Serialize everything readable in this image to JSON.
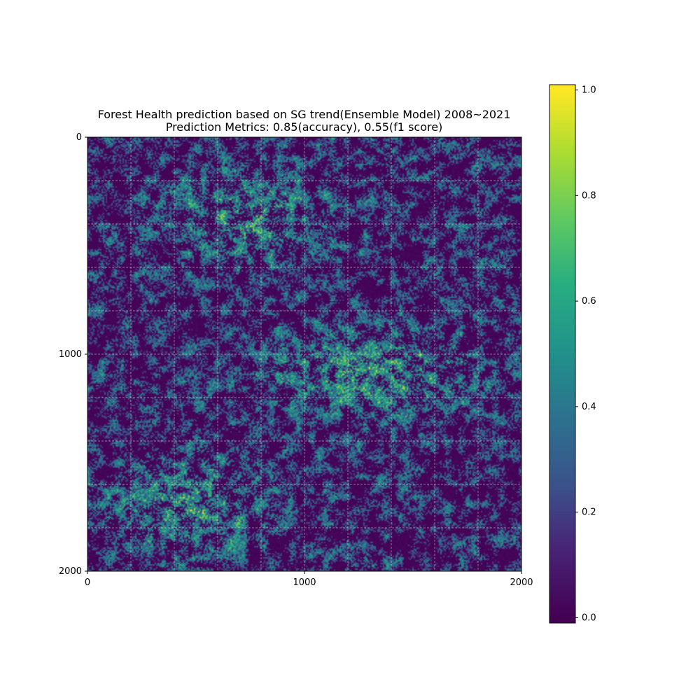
{
  "chart_data": {
    "type": "heatmap",
    "title": "Forest Health prediction based on SG trend(Ensemble Model) 2008~2021",
    "subtitle": "Prediction Metrics: 0.85(accuracy), 0.55(f1 score)",
    "xlabel": "",
    "ylabel": "",
    "xlim": [
      0,
      2000
    ],
    "ylim": [
      2000,
      0
    ],
    "x_ticks": [
      "0",
      "1000",
      "2000"
    ],
    "y_ticks": [
      "0",
      "1000",
      "2000"
    ],
    "grid": true,
    "colormap": "viridis",
    "value_range": [
      0.0,
      1.0
    ],
    "colorbar": {
      "ticks": [
        "0.0",
        "0.2",
        "0.4",
        "0.6",
        "0.8",
        "1.0"
      ],
      "tick_values": [
        0.0,
        0.2,
        0.4,
        0.6,
        0.8,
        1.0
      ],
      "range": [
        -0.01,
        1.01
      ]
    },
    "hotspot_bands": [
      {
        "description": "upper diagonal band",
        "x_range": [
          300,
          1200
        ],
        "y_range": [
          100,
          650
        ],
        "intensity": 0.75
      },
      {
        "description": "middle diagonal band",
        "x_range": [
          700,
          1900
        ],
        "y_range": [
          850,
          1300
        ],
        "intensity": 0.8
      },
      {
        "description": "lower-left cluster",
        "x_range": [
          0,
          900
        ],
        "y_range": [
          1400,
          2000
        ],
        "intensity": 0.7
      }
    ]
  },
  "colors": {
    "viridis_low": "#440154",
    "viridis_mid": "#21918c",
    "viridis_high": "#fde725",
    "grid": "#dddddd",
    "axis": "#000000"
  }
}
